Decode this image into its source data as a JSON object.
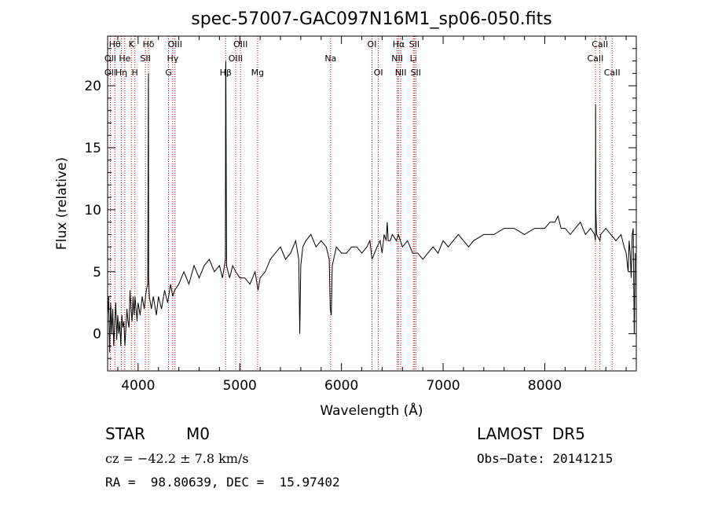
{
  "chart_data": {
    "type": "line",
    "title": "spec-57007-GAC097N16M1_sp06-050.fits",
    "xlabel": "Wavelength (Å)",
    "ylabel": "Flux (relative)",
    "xlim": [
      3700,
      8900
    ],
    "ylim": [
      -3,
      24
    ],
    "xticks": [
      4000,
      5000,
      6000,
      7000,
      8000
    ],
    "yticks": [
      0,
      5,
      10,
      15,
      20
    ],
    "grid": false,
    "series": [
      {
        "x": [
          3700,
          3710,
          3720,
          3730,
          3740,
          3750,
          3760,
          3770,
          3780,
          3790,
          3800,
          3810,
          3820,
          3830,
          3840,
          3850,
          3860,
          3870,
          3880,
          3890,
          3900,
          3910,
          3920,
          3930,
          3940,
          3950,
          3960,
          3970,
          3980,
          3990,
          4000,
          4020,
          4040,
          4060,
          4080,
          4095,
          4101,
          4102,
          4103,
          4110,
          4130,
          4150,
          4180,
          4200,
          4230,
          4260,
          4290,
          4320,
          4340,
          4360,
          4400,
          4450,
          4500,
          4550,
          4600,
          4650,
          4700,
          4750,
          4800,
          4830,
          4850,
          4858,
          4861,
          4863,
          4870,
          4900,
          4930,
          4960,
          5000,
          5050,
          5100,
          5150,
          5180,
          5200,
          5250,
          5300,
          5350,
          5400,
          5450,
          5500,
          5550,
          5580,
          5590,
          5600,
          5620,
          5650,
          5700,
          5750,
          5800,
          5850,
          5880,
          5890,
          5900,
          5910,
          5950,
          6000,
          6050,
          6100,
          6150,
          6200,
          6250,
          6280,
          6300,
          6350,
          6380,
          6400,
          6420,
          6440,
          6450,
          6460,
          6480,
          6500,
          6540,
          6560,
          6580,
          6600,
          6650,
          6700,
          6750,
          6800,
          6850,
          6900,
          6950,
          7000,
          7050,
          7100,
          7150,
          7200,
          7250,
          7300,
          7400,
          7500,
          7600,
          7700,
          7800,
          7900,
          8000,
          8050,
          8100,
          8130,
          8160,
          8200,
          8250,
          8300,
          8350,
          8400,
          8450,
          8490,
          8498,
          8500,
          8502,
          8510,
          8542,
          8550,
          8600,
          8650,
          8700,
          8750,
          8780,
          8800,
          8820,
          8830,
          8840,
          8850,
          8860,
          8870,
          8880,
          8890
        ],
        "y": [
          1.5,
          3.0,
          -1.5,
          2.5,
          0.0,
          2.0,
          -1.0,
          1.0,
          2.5,
          -0.5,
          1.5,
          0.0,
          1.0,
          -1.0,
          1.5,
          0.5,
          1.0,
          -1.0,
          0.5,
          2.0,
          1.0,
          0.5,
          3.5,
          2.0,
          1.0,
          3.0,
          1.5,
          3.0,
          2.0,
          1.0,
          2.5,
          1.5,
          3.0,
          2.0,
          3.5,
          4.0,
          20.5,
          21.0,
          4.5,
          3.0,
          2.0,
          3.0,
          1.5,
          3.0,
          2.0,
          3.5,
          2.5,
          4.0,
          3.0,
          3.5,
          4.0,
          5.0,
          4.0,
          5.5,
          4.5,
          5.5,
          6.0,
          5.0,
          5.5,
          4.5,
          5.5,
          6.0,
          21.5,
          22.0,
          5.5,
          4.5,
          5.5,
          5.0,
          4.5,
          4.5,
          4.0,
          5.0,
          3.5,
          4.5,
          5.0,
          6.0,
          6.5,
          7.0,
          6.0,
          6.5,
          7.5,
          6.0,
          0.0,
          5.5,
          7.0,
          7.5,
          8.0,
          7.0,
          7.5,
          7.0,
          6.0,
          2.0,
          1.5,
          5.5,
          7.0,
          6.5,
          6.5,
          7.0,
          7.0,
          6.5,
          7.0,
          7.5,
          6.0,
          7.0,
          7.5,
          6.5,
          8.0,
          7.5,
          9.0,
          7.5,
          7.5,
          8.0,
          7.5,
          8.0,
          7.5,
          7.0,
          7.5,
          6.5,
          6.5,
          6.0,
          6.5,
          7.0,
          6.5,
          7.5,
          7.0,
          7.5,
          8.0,
          7.5,
          7.0,
          7.5,
          8.0,
          8.0,
          8.5,
          8.5,
          8.0,
          8.5,
          8.5,
          9.0,
          9.0,
          9.5,
          8.5,
          8.5,
          8.0,
          8.5,
          9.0,
          8.0,
          8.5,
          8.0,
          7.5,
          18.5,
          10.0,
          8.0,
          7.5,
          8.0,
          8.5,
          8.0,
          7.5,
          8.0,
          7.0,
          6.5,
          5.0,
          7.5,
          6.5,
          4.5,
          8.0,
          8.5,
          0.0,
          6.5
        ]
      }
    ],
    "line_markers": [
      {
        "wl": 3727,
        "top": "OII",
        "row": 2
      },
      {
        "wl": 3727,
        "top": "OII",
        "row": 3
      },
      {
        "wl": 3771,
        "top": "Hθ",
        "row": 1
      },
      {
        "wl": 3835,
        "top": "Hη",
        "row": 3
      },
      {
        "wl": 3869,
        "top": "He",
        "row": 2
      },
      {
        "wl": 3934,
        "top": "K",
        "row": 1
      },
      {
        "wl": 3968,
        "top": "H",
        "row": 3
      },
      {
        "wl": 4072,
        "top": "SII",
        "row": 2
      },
      {
        "wl": 4102,
        "top": "Hδ",
        "row": 1
      },
      {
        "wl": 4300,
        "top": "G",
        "row": 3
      },
      {
        "wl": 4340,
        "top": "Hγ",
        "row": 2
      },
      {
        "wl": 4363,
        "top": "OIII",
        "row": 1
      },
      {
        "wl": 4861,
        "top": "Hβ",
        "row": 3
      },
      {
        "wl": 4959,
        "top": "OIII",
        "row": 2
      },
      {
        "wl": 5007,
        "top": "OIII",
        "row": 1
      },
      {
        "wl": 5175,
        "top": "Mg",
        "row": 3
      },
      {
        "wl": 5893,
        "top": "Na",
        "row": 2
      },
      {
        "wl": 6300,
        "top": "OI",
        "row": 1
      },
      {
        "wl": 6363,
        "top": "OI",
        "row": 3
      },
      {
        "wl": 6548,
        "top": "NII",
        "row": 2
      },
      {
        "wl": 6563,
        "top": "Hα",
        "row": 1
      },
      {
        "wl": 6583,
        "top": "NII",
        "row": 3
      },
      {
        "wl": 6707,
        "top": "Li",
        "row": 2
      },
      {
        "wl": 6716,
        "top": "SII",
        "row": 1
      },
      {
        "wl": 6731,
        "top": "SII",
        "row": 3
      },
      {
        "wl": 8498,
        "top": "CaII",
        "row": 2
      },
      {
        "wl": 8542,
        "top": "CaII",
        "row": 1
      },
      {
        "wl": 8662,
        "top": "CaII",
        "row": 3
      }
    ]
  },
  "info": {
    "class": "STAR",
    "subclass": "M0",
    "survey": "LAMOST  DR5",
    "cz": "cz = −42.2 ± 7.8 km/s",
    "obs_date": "Obs−Date: 20141215",
    "coords": "RA =  98.80639, DEC =  15.97402"
  }
}
